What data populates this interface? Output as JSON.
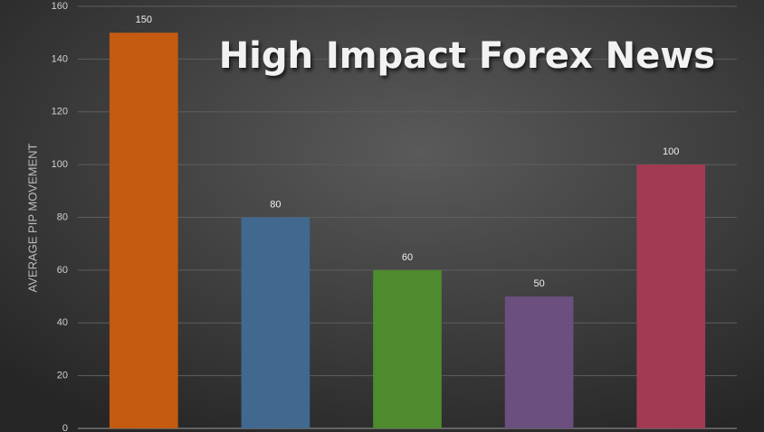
{
  "chart_data": {
    "type": "bar",
    "title": "High Impact Forex News",
    "y_label": "AVERAGE PIP MOVEMENT",
    "categories": [
      null,
      null,
      null,
      null,
      null
    ],
    "values": [
      150,
      80,
      60,
      50,
      100
    ],
    "colors": [
      "#c55a11",
      "#41688f",
      "#4e8a2e",
      "#6a4f7f",
      "#a33a54"
    ],
    "ylim": [
      0,
      160
    ],
    "yticks": [
      0,
      20,
      40,
      60,
      80,
      100,
      120,
      140,
      160
    ],
    "grid": true
  }
}
